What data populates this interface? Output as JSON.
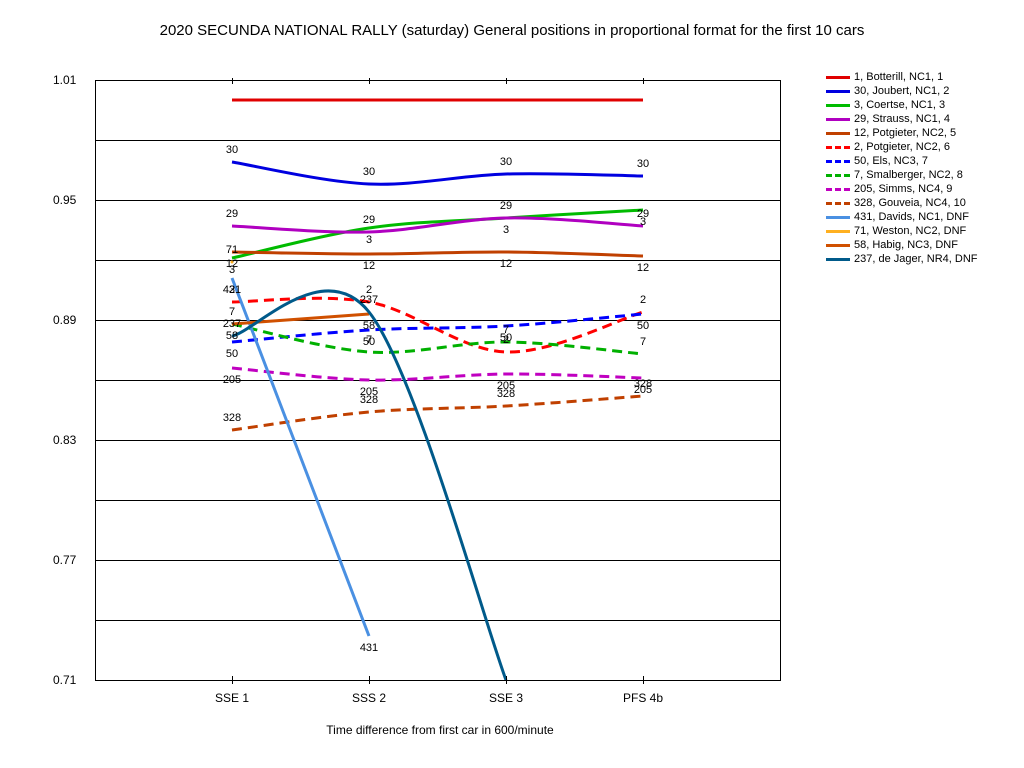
{
  "chart_data": {
    "type": "line",
    "title": "2020 SECUNDA NATIONAL RALLY (saturday)  General positions in proportional format for the first 10 cars",
    "xlabel": "Time difference from first car in 600/minute",
    "ylabel": "",
    "categories": [
      "SSE 1",
      "SSS 2",
      "SSE 3",
      "PFS 4b"
    ],
    "ylim": [
      0.71,
      1.01
    ],
    "yticks": [
      "0.71",
      "0.77",
      "0.83",
      "0.89",
      "0.95",
      "1.01"
    ],
    "grid": true,
    "legend_position": "right",
    "series": [
      {
        "name": "1, Botterill, NC1, 1",
        "color": "#e00000",
        "dash": "solid",
        "values": [
          1.0,
          1.0,
          1.0,
          1.0
        ],
        "labels": [
          "",
          "",
          "",
          ""
        ]
      },
      {
        "name": "30, Joubert, NC1, 2",
        "color": "#0000e0",
        "dash": "solid",
        "values": [
          0.969,
          0.958,
          0.963,
          0.962
        ],
        "labels": [
          "30",
          "30",
          "30",
          "30"
        ]
      },
      {
        "name": "3, Coertse, NC1, 3",
        "color": "#00bb00",
        "dash": "solid",
        "values": [
          0.921,
          0.936,
          0.941,
          0.945
        ],
        "labels": [
          "3",
          "3",
          "3",
          "3"
        ]
      },
      {
        "name": "29, Strauss, NC1, 4",
        "color": "#b000c0",
        "dash": "solid",
        "values": [
          0.937,
          0.934,
          0.941,
          0.937
        ],
        "labels": [
          "29",
          "29",
          "29",
          "29"
        ]
      },
      {
        "name": "12, Potgieter, NC2, 5",
        "color": "#c04000",
        "dash": "solid",
        "values": [
          0.924,
          0.923,
          0.924,
          0.922
        ],
        "labels": [
          "12",
          "12",
          "12",
          "12"
        ]
      },
      {
        "name": "2, Potgieter, NC2, 6",
        "color": "#ff0000",
        "dash": "dash",
        "values": [
          0.899,
          0.899,
          0.874,
          0.894
        ],
        "labels": [
          "2",
          "2",
          "2",
          "2"
        ]
      },
      {
        "name": "50, Els, NC3, 7",
        "color": "#0000ff",
        "dash": "dash",
        "values": [
          0.879,
          0.885,
          0.887,
          0.893
        ],
        "labels": [
          "50",
          "50",
          "50",
          "50"
        ]
      },
      {
        "name": "7, Smalberger, NC2, 8",
        "color": "#00b000",
        "dash": "dash",
        "values": [
          0.888,
          0.874,
          0.879,
          0.873
        ],
        "labels": [
          "7",
          "7",
          "7",
          "7"
        ]
      },
      {
        "name": "205, Simms, NC4, 9",
        "color": "#c000c0",
        "dash": "dash",
        "values": [
          0.866,
          0.86,
          0.863,
          0.861
        ],
        "labels": [
          "205",
          "205",
          "205",
          "205"
        ]
      },
      {
        "name": "328, Gouveia, NC4, 10",
        "color": "#c04000",
        "dash": "dash",
        "values": [
          0.835,
          0.844,
          0.847,
          0.852
        ],
        "labels": [
          "328",
          "328",
          "328",
          "328"
        ]
      },
      {
        "name": "431, Davids, NC1, DNF",
        "color": "#4a90e2",
        "dash": "solid",
        "values": [
          0.911,
          0.732,
          null,
          null
        ],
        "labels": [
          "431",
          "431",
          "",
          ""
        ]
      },
      {
        "name": "71, Weston, NC2, DNF",
        "color": "#ffb020",
        "dash": "solid",
        "values": [
          0.919,
          null,
          null,
          null
        ],
        "labels": [
          "71",
          "",
          "",
          ""
        ]
      },
      {
        "name": "58, Habig, NC3, DNF",
        "color": "#d05000",
        "dash": "solid",
        "values": [
          0.888,
          0.893,
          null,
          null
        ],
        "labels": [
          "58",
          "58",
          "",
          ""
        ]
      },
      {
        "name": "237, de Jager, NR4, DNF",
        "color": "#005a8a",
        "dash": "solid",
        "values": [
          0.882,
          0.894,
          0.71,
          null
        ],
        "labels": [
          "237",
          "237",
          "",
          ""
        ]
      }
    ]
  }
}
